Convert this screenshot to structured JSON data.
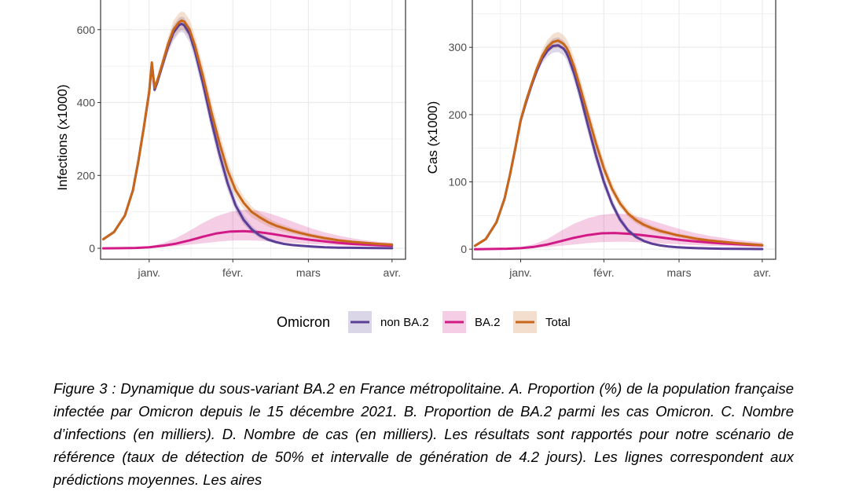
{
  "colors": {
    "non_ba2": "#5b3f97",
    "ba2": "#d11a85",
    "total": "#c8661a",
    "grid": "#ebebeb",
    "frame": "#333333"
  },
  "legend": {
    "title": "Omicron",
    "items": [
      {
        "label": "non BA.2",
        "color_key": "non_ba2"
      },
      {
        "label": "BA.2",
        "color_key": "ba2"
      },
      {
        "label": "Total",
        "color_key": "total"
      }
    ]
  },
  "chart_data": [
    {
      "type": "line",
      "panel": "C",
      "ylabel": "Infections (x1000)",
      "xlabel": "",
      "x_ticks": [
        {
          "label": "janv.",
          "day": 0
        },
        {
          "label": "févr.",
          "day": 31
        },
        {
          "label": "mars",
          "day": 59
        },
        {
          "label": "avr.",
          "day": 90
        }
      ],
      "y_ticks": [
        0,
        200,
        400,
        600
      ],
      "xlim": [
        -18,
        95
      ],
      "ylim": [
        -30,
        690
      ],
      "series": [
        {
          "name": "Total",
          "color_key": "total",
          "x": [
            -17,
            -13,
            -9,
            -6,
            -4,
            -2,
            0,
            1,
            2,
            3,
            5,
            7,
            9,
            11,
            12,
            13,
            15,
            17,
            20,
            23,
            26,
            29,
            32,
            35,
            38,
            41,
            44,
            47,
            50,
            53,
            56,
            60,
            65,
            70,
            75,
            80,
            85,
            90
          ],
          "y": [
            25,
            45,
            90,
            160,
            240,
            330,
            430,
            510,
            440,
            460,
            510,
            560,
            600,
            620,
            625,
            622,
            600,
            555,
            470,
            375,
            290,
            215,
            160,
            125,
            100,
            85,
            72,
            62,
            55,
            48,
            42,
            35,
            28,
            22,
            18,
            15,
            12,
            10
          ],
          "lower": [
            25,
            45,
            90,
            160,
            240,
            330,
            425,
            505,
            430,
            450,
            495,
            540,
            575,
            595,
            600,
            598,
            575,
            530,
            440,
            345,
            260,
            190,
            140,
            108,
            85,
            72,
            60,
            52,
            45,
            40,
            35,
            29,
            23,
            18,
            15,
            12,
            10,
            9
          ],
          "upper": [
            25,
            45,
            90,
            160,
            240,
            330,
            435,
            515,
            450,
            470,
            525,
            580,
            625,
            645,
            650,
            648,
            628,
            582,
            500,
            405,
            320,
            242,
            182,
            142,
            115,
            97,
            83,
            72,
            64,
            56,
            49,
            41,
            33,
            26,
            21,
            17,
            14,
            12
          ]
        },
        {
          "name": "non BA.2",
          "color_key": "non_ba2",
          "x": [
            -17,
            -13,
            -9,
            -6,
            -4,
            -2,
            0,
            1,
            2,
            3,
            5,
            7,
            9,
            11,
            12,
            13,
            15,
            17,
            20,
            23,
            26,
            29,
            32,
            35,
            38,
            41,
            44,
            47,
            50,
            53,
            56,
            60,
            65,
            70,
            75,
            80,
            85,
            90
          ],
          "y": [
            25,
            45,
            90,
            160,
            240,
            330,
            428,
            505,
            435,
            455,
            505,
            553,
            592,
            612,
            616,
            612,
            588,
            540,
            450,
            350,
            260,
            180,
            118,
            78,
            52,
            35,
            24,
            17,
            12,
            9,
            7,
            5,
            3,
            2,
            1.5,
            1,
            0.7,
            0.5
          ],
          "lower": [
            25,
            45,
            90,
            160,
            240,
            330,
            422,
            498,
            425,
            444,
            490,
            535,
            570,
            590,
            594,
            590,
            565,
            515,
            425,
            325,
            235,
            160,
            102,
            66,
            43,
            28,
            19,
            13,
            9,
            7,
            5,
            3.5,
            2,
            1.2,
            0.8,
            0.5,
            0.3,
            0.2
          ],
          "upper": [
            25,
            45,
            90,
            160,
            240,
            330,
            434,
            512,
            445,
            465,
            518,
            570,
            612,
            632,
            636,
            633,
            610,
            565,
            477,
            378,
            287,
            202,
            136,
            92,
            62,
            43,
            30,
            21,
            15,
            11,
            9,
            6.5,
            4,
            3,
            2,
            1.5,
            1,
            0.8
          ]
        },
        {
          "name": "BA.2",
          "color_key": "ba2",
          "x": [
            -17,
            -10,
            -5,
            0,
            5,
            10,
            15,
            20,
            25,
            30,
            35,
            40,
            45,
            50,
            55,
            60,
            65,
            70,
            75,
            80,
            85,
            90
          ],
          "y": [
            0,
            0.5,
            1,
            3,
            7,
            13,
            22,
            32,
            41,
            46,
            47,
            45,
            40,
            34,
            28,
            23,
            19,
            15,
            12,
            10,
            8.5,
            7
          ],
          "lower": [
            0,
            0.2,
            0.5,
            1,
            3,
            6,
            10,
            14,
            18,
            21,
            22,
            21,
            19,
            17,
            14,
            12,
            10,
            8,
            7,
            6,
            5,
            4
          ],
          "upper": [
            0,
            1,
            2,
            5,
            14,
            28,
            48,
            70,
            88,
            100,
            106,
            104,
            95,
            82,
            68,
            55,
            44,
            35,
            28,
            22,
            18,
            15
          ]
        }
      ]
    },
    {
      "type": "line",
      "panel": "D",
      "ylabel": "Cas (x1000)",
      "xlabel": "",
      "x_ticks": [
        {
          "label": "janv.",
          "day": 0
        },
        {
          "label": "févr.",
          "day": 31
        },
        {
          "label": "mars",
          "day": 59
        },
        {
          "label": "avr.",
          "day": 90
        }
      ],
      "y_ticks": [
        0,
        100,
        200,
        300
      ],
      "xlim": [
        -18,
        95
      ],
      "ylim": [
        -15,
        375
      ],
      "series": [
        {
          "name": "Total",
          "color_key": "total",
          "x": [
            -17,
            -13,
            -9,
            -6,
            -4,
            -2,
            0,
            2,
            4,
            6,
            8,
            10,
            12,
            14,
            16,
            17,
            18,
            20,
            22,
            25,
            28,
            31,
            34,
            37,
            40,
            43,
            46,
            49,
            52,
            55,
            58,
            62,
            66,
            70,
            75,
            80,
            85,
            90
          ],
          "y": [
            5,
            15,
            40,
            75,
            110,
            150,
            192,
            220,
            245,
            268,
            287,
            300,
            308,
            310,
            305,
            300,
            292,
            270,
            243,
            200,
            158,
            120,
            90,
            68,
            53,
            43,
            36,
            31,
            27,
            24,
            21,
            18,
            15,
            13,
            11,
            9,
            7.5,
            6
          ],
          "lower": [
            5,
            15,
            40,
            75,
            110,
            150,
            190,
            216,
            240,
            262,
            280,
            291,
            298,
            300,
            295,
            290,
            281,
            258,
            230,
            187,
            146,
            110,
            82,
            62,
            48,
            38,
            32,
            27,
            23,
            21,
            18,
            15,
            13,
            11,
            9,
            7.5,
            6,
            5
          ],
          "upper": [
            5,
            15,
            40,
            75,
            110,
            150,
            194,
            224,
            250,
            275,
            296,
            311,
            320,
            323,
            318,
            313,
            305,
            284,
            257,
            214,
            171,
            131,
            99,
            75,
            59,
            48,
            41,
            35,
            31,
            27,
            24,
            21,
            18,
            15,
            13,
            11,
            9,
            7.5
          ]
        },
        {
          "name": "non BA.2",
          "color_key": "non_ba2",
          "x": [
            -17,
            -13,
            -9,
            -6,
            -4,
            -2,
            0,
            2,
            4,
            6,
            8,
            10,
            12,
            14,
            16,
            17,
            18,
            20,
            22,
            25,
            28,
            31,
            34,
            37,
            40,
            43,
            46,
            49,
            52,
            55,
            58,
            62,
            66,
            70,
            75,
            80,
            85,
            90
          ],
          "y": [
            5,
            15,
            40,
            75,
            110,
            150,
            191,
            218,
            243,
            265,
            283,
            295,
            302,
            303,
            298,
            292,
            283,
            260,
            232,
            185,
            140,
            100,
            68,
            44,
            28,
            18,
            12,
            8,
            5.5,
            4,
            3,
            2,
            1.5,
            1,
            0.7,
            0.5,
            0.3,
            0.2
          ],
          "lower": [
            5,
            15,
            40,
            75,
            110,
            150,
            189,
            214,
            238,
            259,
            276,
            286,
            292,
            293,
            288,
            282,
            272,
            248,
            220,
            173,
            129,
            91,
            61,
            39,
            24,
            15,
            10,
            6.5,
            4.5,
            3,
            2.2,
            1.5,
            1,
            0.7,
            0.5,
            0.3,
            0.2,
            0.1
          ],
          "upper": [
            5,
            15,
            40,
            75,
            110,
            150,
            193,
            222,
            248,
            272,
            291,
            305,
            313,
            315,
            310,
            303,
            295,
            273,
            245,
            198,
            152,
            110,
            76,
            50,
            32,
            21,
            14,
            9.5,
            6.5,
            5,
            3.8,
            2.6,
            2,
            1.3,
            1,
            0.7,
            0.5,
            0.3
          ]
        },
        {
          "name": "BA.2",
          "color_key": "ba2",
          "x": [
            -17,
            -10,
            -5,
            0,
            5,
            10,
            15,
            20,
            25,
            30,
            35,
            40,
            45,
            50,
            55,
            60,
            65,
            70,
            75,
            80,
            85,
            90
          ],
          "y": [
            0,
            0.3,
            0.6,
            1.5,
            3.5,
            7,
            12,
            17,
            21,
            23.5,
            24,
            23,
            21,
            18.5,
            16,
            13.5,
            11.5,
            10,
            8.5,
            7.5,
            6.5,
            5.5
          ],
          "lower": [
            0,
            0.1,
            0.3,
            0.6,
            1.5,
            3,
            5,
            7,
            9,
            10.5,
            11,
            11,
            10,
            9,
            8,
            7,
            6,
            5,
            4.5,
            4,
            3.5,
            3
          ],
          "upper": [
            0,
            0.6,
            1.2,
            3,
            7.5,
            15,
            27,
            38,
            46,
            51,
            53,
            52,
            47,
            41,
            35,
            29,
            24,
            20,
            17,
            14,
            12,
            10
          ]
        }
      ]
    }
  ],
  "caption": "Figure 3 : Dynamique du sous-variant BA.2 en France métropolitaine. A. Proportion (%) de la population française infectée par Omicron depuis le 15 décembre 2021. B. Proportion de BA.2 parmi les cas Omicron. C. Nombre d’infections (en milliers). D. Nombre de cas (en milliers). Les résultats sont rapportés pour notre scénario de référence (taux de détection de 50% et intervalle de génération de 4.2 jours). Les lignes correspondent aux prédictions moyennes. Les aires"
}
